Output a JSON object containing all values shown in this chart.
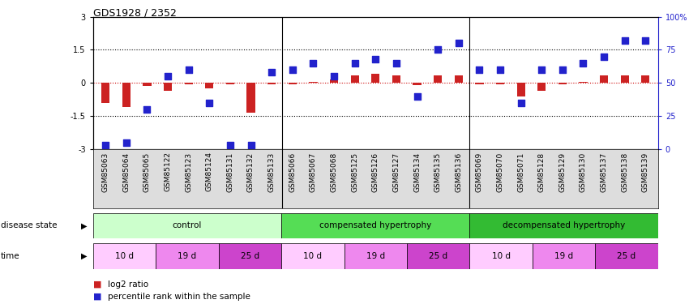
{
  "title": "GDS1928 / 2352",
  "samples": [
    "GSM85063",
    "GSM85064",
    "GSM85065",
    "GSM85122",
    "GSM85123",
    "GSM85124",
    "GSM85131",
    "GSM85132",
    "GSM85133",
    "GSM85066",
    "GSM85067",
    "GSM85068",
    "GSM85125",
    "GSM85126",
    "GSM85127",
    "GSM85134",
    "GSM85135",
    "GSM85136",
    "GSM85069",
    "GSM85070",
    "GSM85071",
    "GSM85128",
    "GSM85129",
    "GSM85130",
    "GSM85137",
    "GSM85138",
    "GSM85139"
  ],
  "log2_ratio": [
    -0.9,
    -1.1,
    -0.15,
    -0.35,
    -0.05,
    -0.25,
    -0.05,
    -1.35,
    -0.05,
    -0.05,
    0.05,
    0.15,
    0.35,
    0.4,
    0.35,
    -0.1,
    0.35,
    0.35,
    -0.05,
    -0.05,
    -0.6,
    -0.35,
    -0.05,
    0.05,
    0.35,
    0.35,
    0.35
  ],
  "percentile_rank": [
    3,
    5,
    30,
    55,
    60,
    35,
    3,
    3,
    58,
    60,
    65,
    55,
    65,
    68,
    65,
    40,
    75,
    80,
    60,
    60,
    35,
    60,
    60,
    65,
    70,
    82,
    82
  ],
  "ylim_left": [
    -3,
    3
  ],
  "ylim_right": [
    0,
    100
  ],
  "right_ticks": [
    0,
    25,
    50,
    75,
    100
  ],
  "right_tick_labels": [
    "0",
    "25",
    "50",
    "75",
    "100%"
  ],
  "left_ticks": [
    -3,
    -1.5,
    0,
    1.5,
    3
  ],
  "bar_color": "#cc2222",
  "dot_color": "#2222cc",
  "disease_state_groups": [
    {
      "label": "control",
      "start": 0,
      "end": 9,
      "color": "#ccffcc"
    },
    {
      "label": "compensated hypertrophy",
      "start": 9,
      "end": 18,
      "color": "#55dd55"
    },
    {
      "label": "decompensated hypertrophy",
      "start": 18,
      "end": 27,
      "color": "#33bb33"
    }
  ],
  "time_groups": [
    {
      "label": "10 d",
      "start": 0,
      "end": 3,
      "color": "#ffccff"
    },
    {
      "label": "19 d",
      "start": 3,
      "end": 6,
      "color": "#ee88ee"
    },
    {
      "label": "25 d",
      "start": 6,
      "end": 9,
      "color": "#cc44cc"
    },
    {
      "label": "10 d",
      "start": 9,
      "end": 12,
      "color": "#ffccff"
    },
    {
      "label": "19 d",
      "start": 12,
      "end": 15,
      "color": "#ee88ee"
    },
    {
      "label": "25 d",
      "start": 15,
      "end": 18,
      "color": "#cc44cc"
    },
    {
      "label": "10 d",
      "start": 18,
      "end": 21,
      "color": "#ffccff"
    },
    {
      "label": "19 d",
      "start": 21,
      "end": 24,
      "color": "#ee88ee"
    },
    {
      "label": "25 d",
      "start": 24,
      "end": 27,
      "color": "#cc44cc"
    }
  ],
  "legend_bar_color": "#cc2222",
  "legend_dot_color": "#2222cc",
  "legend_bar_label": "log2 ratio",
  "legend_dot_label": "percentile rank within the sample",
  "xtick_bg": "#dddddd"
}
